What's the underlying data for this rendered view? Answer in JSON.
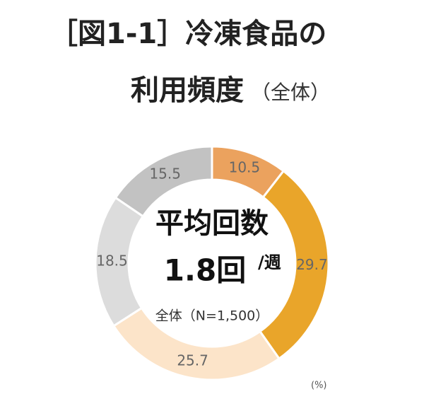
{
  "chart_data": {
    "type": "donut",
    "title_line1": "［図1-1］冷凍食品の",
    "title_line2": "利用頻度",
    "title_suffix": "（全体）",
    "center_label": "平均回数",
    "center_value": "1.8回",
    "center_unit": "/週",
    "center_note": "全体（N=1,500）",
    "unit_label": "(%)",
    "categories": [
      null,
      null,
      null,
      null,
      null
    ],
    "values": [
      10.5,
      29.7,
      25.7,
      18.5,
      15.5
    ],
    "colors": [
      "#eba25e",
      "#e9a52a",
      "#fce4c9",
      "#dcdcdc",
      "#c2c2c2"
    ]
  }
}
